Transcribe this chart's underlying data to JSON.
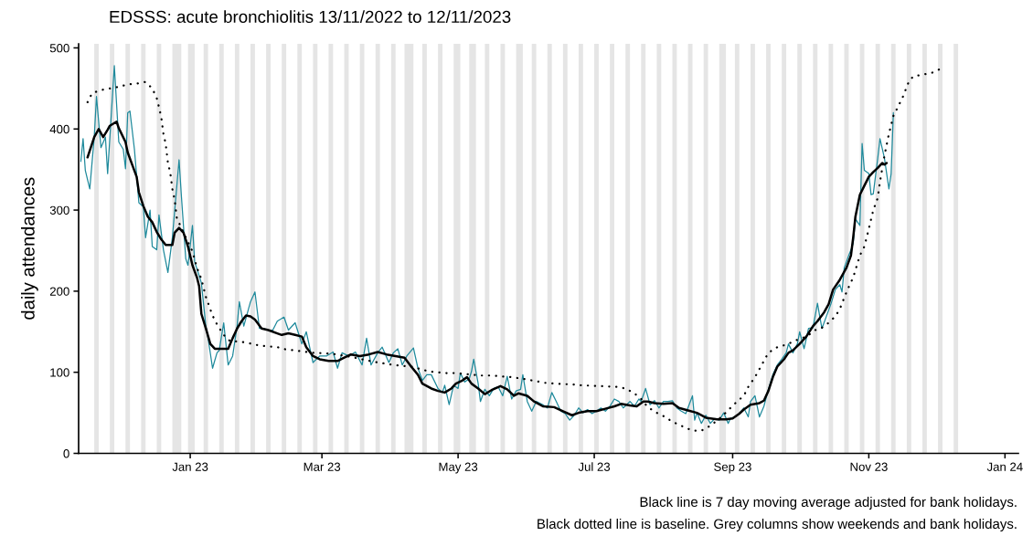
{
  "chart_data": {
    "type": "line",
    "title": "EDSSS: acute bronchiolitis 13/11/2022 to 12/11/2023",
    "ylabel": "daily attendances",
    "annotations": [
      "Black line is 7 day moving average adjusted for bank holidays.",
      "Black dotted line is baseline. Grey columns show weekends and bank holidays."
    ],
    "xlim": [
      "2022-11-12",
      "2024-01-07"
    ],
    "ylim": [
      0,
      505
    ],
    "xticks": [
      {
        "value": "2023-01-01",
        "label": "Jan 23"
      },
      {
        "value": "2023-03-01",
        "label": "Mar 23"
      },
      {
        "value": "2023-05-01",
        "label": "May 23"
      },
      {
        "value": "2023-07-01",
        "label": "Jul 23"
      },
      {
        "value": "2023-09-01",
        "label": "Sep 23"
      },
      {
        "value": "2023-11-01",
        "label": "Nov 23"
      },
      {
        "value": "2024-01-01",
        "label": "Jan 24"
      }
    ],
    "yticks": [
      0,
      100,
      200,
      300,
      400,
      500
    ],
    "series": [
      {
        "color": "#1f8a9c",
        "x": [
          "2022-11-13",
          "2022-11-14",
          "2022-11-15",
          "2022-11-17",
          "2022-11-19",
          "2022-11-20",
          "2022-11-22",
          "2022-11-24",
          "2022-11-25",
          "2022-11-28",
          "2022-11-30",
          "2022-12-02",
          "2022-12-03",
          "2022-12-04",
          "2022-12-05",
          "2022-12-07",
          "2022-12-09",
          "2022-12-11",
          "2022-12-12",
          "2022-12-14",
          "2022-12-15",
          "2022-12-17",
          "2022-12-18",
          "2022-12-20",
          "2022-12-22",
          "2022-12-24",
          "2022-12-27",
          "2022-12-28",
          "2022-12-30",
          "2022-12-31",
          "2023-01-02",
          "2023-01-03",
          "2023-01-05",
          "2023-01-06",
          "2023-01-08",
          "2023-01-09",
          "2023-01-11",
          "2023-01-13",
          "2023-01-14",
          "2023-01-16",
          "2023-01-18",
          "2023-01-20",
          "2023-01-22",
          "2023-01-23",
          "2023-01-25",
          "2023-01-28",
          "2023-01-30",
          "2023-02-01",
          "2023-02-03",
          "2023-02-05",
          "2023-02-07",
          "2023-02-09",
          "2023-02-12",
          "2023-02-14",
          "2023-02-17",
          "2023-02-20",
          "2023-02-22",
          "2023-02-25",
          "2023-02-28",
          "2023-03-03",
          "2023-03-06",
          "2023-03-08",
          "2023-03-10",
          "2023-03-13",
          "2023-03-16",
          "2023-03-19",
          "2023-03-21",
          "2023-03-23",
          "2023-03-26",
          "2023-03-28",
          "2023-03-31",
          "2023-04-02",
          "2023-04-04",
          "2023-04-06",
          "2023-04-08",
          "2023-04-11",
          "2023-04-13",
          "2023-04-15",
          "2023-04-17",
          "2023-04-19",
          "2023-04-22",
          "2023-04-24",
          "2023-04-25",
          "2023-04-27",
          "2023-04-29",
          "2023-05-01",
          "2023-05-02",
          "2023-05-04",
          "2023-05-06",
          "2023-05-07",
          "2023-05-08",
          "2023-05-10",
          "2023-05-11",
          "2023-05-13",
          "2023-05-15",
          "2023-05-17",
          "2023-05-19",
          "2023-05-21",
          "2023-05-23",
          "2023-05-25",
          "2023-05-27",
          "2023-05-29",
          "2023-05-30",
          "2023-06-01",
          "2023-06-03",
          "2023-06-05",
          "2023-06-08",
          "2023-06-10",
          "2023-06-12",
          "2023-06-14",
          "2023-06-16",
          "2023-06-18",
          "2023-06-20",
          "2023-06-22",
          "2023-06-24",
          "2023-06-26",
          "2023-06-28",
          "2023-06-30",
          "2023-07-02",
          "2023-07-04",
          "2023-07-06",
          "2023-07-08",
          "2023-07-10",
          "2023-07-12",
          "2023-07-14",
          "2023-07-17",
          "2023-07-19",
          "2023-07-21",
          "2023-07-22",
          "2023-07-24",
          "2023-07-26",
          "2023-07-28",
          "2023-07-30",
          "2023-08-01",
          "2023-08-03",
          "2023-08-05",
          "2023-08-07",
          "2023-08-09",
          "2023-08-11",
          "2023-08-14",
          "2023-08-15",
          "2023-08-16",
          "2023-08-18",
          "2023-08-20",
          "2023-08-22",
          "2023-08-24",
          "2023-08-26",
          "2023-08-28",
          "2023-08-30",
          "2023-08-31",
          "2023-09-02",
          "2023-09-04",
          "2023-09-06",
          "2023-09-08",
          "2023-09-09",
          "2023-09-11",
          "2023-09-13",
          "2023-09-15",
          "2023-09-17",
          "2023-09-19",
          "2023-09-21",
          "2023-09-23",
          "2023-09-25",
          "2023-09-26",
          "2023-09-28",
          "2023-09-30",
          "2023-10-01",
          "2023-10-03",
          "2023-10-05",
          "2023-10-07",
          "2023-10-09",
          "2023-10-10",
          "2023-10-11",
          "2023-10-13",
          "2023-10-15",
          "2023-10-17",
          "2023-10-19",
          "2023-10-20",
          "2023-10-21",
          "2023-10-23",
          "2023-10-24",
          "2023-10-25",
          "2023-10-26",
          "2023-10-28",
          "2023-10-29",
          "2023-10-30",
          "2023-11-01",
          "2023-11-02",
          "2023-11-03",
          "2023-11-05",
          "2023-11-06",
          "2023-11-08",
          "2023-11-09",
          "2023-11-10",
          "2023-11-11",
          "2023-11-12"
        ],
        "values": [
          360,
          388,
          349,
          326,
          390,
          440,
          377,
          390,
          345,
          478,
          384,
          375,
          351,
          420,
          422,
          375,
          309,
          304,
          266,
          300,
          255,
          251,
          294,
          251,
          223,
          266,
          362,
          319,
          240,
          232,
          281,
          236,
          219,
          210,
          157,
          142,
          105,
          124,
          127,
          161,
          109,
          120,
          157,
          187,
          157,
          187,
          199,
          154,
          154,
          152,
          152,
          163,
          168,
          152,
          161,
          135,
          150,
          112,
          120,
          120,
          125,
          105,
          124,
          120,
          125,
          109,
          142,
          109,
          124,
          131,
          112,
          124,
          129,
          109,
          120,
          130,
          105,
          90,
          97,
          97,
          80,
          75,
          84,
          60,
          84,
          80,
          99,
          88,
          92,
          101,
          116,
          86,
          64,
          79,
          71,
          80,
          82,
          71,
          95,
          67,
          77,
          79,
          97,
          64,
          52,
          64,
          60,
          56,
          75,
          64,
          52,
          49,
          41,
          47,
          56,
          50,
          54,
          49,
          52,
          56,
          52,
          58,
          67,
          64,
          56,
          64,
          58,
          67,
          64,
          80,
          60,
          65,
          56,
          64,
          64,
          65,
          56,
          52,
          49,
          71,
          41,
          50,
          37,
          47,
          37,
          43,
          41,
          50,
          37,
          43,
          45,
          49,
          56,
          45,
          64,
          71,
          45,
          58,
          79,
          97,
          109,
          116,
          124,
          135,
          124,
          135,
          150,
          129,
          154,
          155,
          185,
          169,
          154,
          169,
          184,
          202,
          208,
          199,
          229,
          244,
          251,
          259,
          289,
          281,
          382,
          349,
          345,
          319,
          320,
          364,
          388,
          364,
          345,
          326,
          345,
          420
        ]
      },
      {
        "color": "#000000",
        "x": [
          "2022-11-16",
          "2022-11-19",
          "2022-11-21",
          "2022-11-23",
          "2022-11-25",
          "2022-11-26",
          "2022-11-29",
          "2022-11-30",
          "2022-12-03",
          "2022-12-04",
          "2022-12-06",
          "2022-12-08",
          "2022-12-09",
          "2022-12-11",
          "2022-12-13",
          "2022-12-15",
          "2022-12-17",
          "2022-12-19",
          "2022-12-21",
          "2022-12-24",
          "2022-12-25",
          "2022-12-27",
          "2022-12-29",
          "2022-12-31",
          "2023-01-02",
          "2023-01-04",
          "2023-01-05",
          "2023-01-06",
          "2023-01-08",
          "2023-01-10",
          "2023-01-12",
          "2023-01-14",
          "2023-01-18",
          "2023-01-20",
          "2023-01-22",
          "2023-01-24",
          "2023-01-26",
          "2023-01-28",
          "2023-01-30",
          "2023-02-02",
          "2023-02-05",
          "2023-02-09",
          "2023-02-11",
          "2023-02-14",
          "2023-02-17",
          "2023-02-20",
          "2023-02-22",
          "2023-02-25",
          "2023-02-28",
          "2023-03-04",
          "2023-03-08",
          "2023-03-11",
          "2023-03-14",
          "2023-03-18",
          "2023-03-22",
          "2023-03-26",
          "2023-03-30",
          "2023-04-03",
          "2023-04-07",
          "2023-04-10",
          "2023-04-13",
          "2023-04-15",
          "2023-04-19",
          "2023-04-22",
          "2023-04-25",
          "2023-04-28",
          "2023-04-30",
          "2023-05-03",
          "2023-05-05",
          "2023-05-07",
          "2023-05-10",
          "2023-05-13",
          "2023-05-16",
          "2023-05-20",
          "2023-05-23",
          "2023-05-26",
          "2023-05-28",
          "2023-06-01",
          "2023-06-04",
          "2023-06-08",
          "2023-06-13",
          "2023-06-17",
          "2023-06-21",
          "2023-06-24",
          "2023-06-28",
          "2023-07-02",
          "2023-07-06",
          "2023-07-10",
          "2023-07-13",
          "2023-07-17",
          "2023-07-20",
          "2023-07-23",
          "2023-07-25",
          "2023-07-28",
          "2023-08-01",
          "2023-08-05",
          "2023-08-08",
          "2023-08-12",
          "2023-08-16",
          "2023-08-20",
          "2023-08-25",
          "2023-08-29",
          "2023-09-01",
          "2023-09-04",
          "2023-09-06",
          "2023-09-09",
          "2023-09-13",
          "2023-09-15",
          "2023-09-17",
          "2023-09-19",
          "2023-09-21",
          "2023-09-24",
          "2023-09-26",
          "2023-09-28",
          "2023-10-01",
          "2023-10-04",
          "2023-10-07",
          "2023-10-09",
          "2023-10-12",
          "2023-10-14",
          "2023-10-16",
          "2023-10-19",
          "2023-10-22",
          "2023-10-24",
          "2023-10-25",
          "2023-10-26",
          "2023-10-28",
          "2023-10-30",
          "2023-11-01",
          "2023-11-03",
          "2023-11-05",
          "2023-11-07",
          "2023-11-08",
          "2023-11-09"
        ],
        "values": [
          365,
          390,
          400,
          390,
          399,
          404,
          409,
          401,
          384,
          371,
          356,
          341,
          322,
          305,
          292,
          285,
          273,
          264,
          257,
          257,
          272,
          278,
          272,
          255,
          232,
          217,
          206,
          172,
          154,
          135,
          129,
          129,
          129,
          142,
          154,
          163,
          170,
          169,
          165,
          154,
          152,
          148,
          146,
          148,
          146,
          144,
          131,
          120,
          116,
          114,
          114,
          118,
          122,
          120,
          122,
          125,
          122,
          120,
          118,
          107,
          97,
          86,
          80,
          77,
          75,
          80,
          86,
          90,
          94,
          86,
          80,
          73,
          78,
          83,
          79,
          71,
          74,
          71,
          64,
          58,
          57,
          52,
          47,
          50,
          52,
          52,
          55,
          58,
          61,
          59,
          58,
          64,
          64,
          62,
          61,
          62,
          56,
          53,
          50,
          44,
          42,
          42,
          43,
          49,
          54,
          60,
          62,
          65,
          77,
          94,
          107,
          116,
          124,
          127,
          135,
          144,
          157,
          163,
          174,
          184,
          202,
          214,
          229,
          244,
          266,
          292,
          319,
          330,
          341,
          347,
          352,
          358,
          356,
          358
        ]
      },
      {
        "color": "#000000",
        "line_style": "dotted",
        "x": [
          "2022-11-16",
          "2022-11-18",
          "2022-11-22",
          "2022-11-26",
          "2022-11-30",
          "2022-12-04",
          "2022-12-08",
          "2022-12-12",
          "2022-12-15",
          "2022-12-17",
          "2022-12-18",
          "2022-12-19",
          "2022-12-20",
          "2022-12-21",
          "2022-12-22",
          "2022-12-23",
          "2022-12-24",
          "2022-12-25",
          "2022-12-26",
          "2023-01-02",
          "2023-01-04",
          "2023-01-06",
          "2023-01-08",
          "2023-01-11",
          "2023-01-13",
          "2023-01-16",
          "2023-01-19",
          "2023-01-23",
          "2023-01-27",
          "2023-02-01",
          "2023-02-05",
          "2023-02-09",
          "2023-02-13",
          "2023-02-17",
          "2023-02-25",
          "2023-03-05",
          "2023-03-14",
          "2023-03-24",
          "2023-04-02",
          "2023-04-10",
          "2023-04-18",
          "2023-04-26",
          "2023-04-30",
          "2023-05-07",
          "2023-05-11",
          "2023-05-16",
          "2023-05-20",
          "2023-05-25",
          "2023-06-01",
          "2023-06-05",
          "2023-06-09",
          "2023-06-13",
          "2023-06-21",
          "2023-06-25",
          "2023-07-03",
          "2023-07-11",
          "2023-07-15",
          "2023-07-19",
          "2023-07-22",
          "2023-07-25",
          "2023-07-29",
          "2023-08-01",
          "2023-08-05",
          "2023-08-09",
          "2023-08-14",
          "2023-08-18",
          "2023-08-22",
          "2023-08-27",
          "2023-08-31",
          "2023-09-03",
          "2023-09-06",
          "2023-09-08",
          "2023-09-11",
          "2023-09-15",
          "2023-09-17",
          "2023-09-21",
          "2023-09-25",
          "2023-09-29",
          "2023-10-04",
          "2023-10-08",
          "2023-10-11",
          "2023-10-14",
          "2023-10-17",
          "2023-10-19",
          "2023-10-22",
          "2023-10-25",
          "2023-10-28",
          "2023-10-30",
          "2023-11-01",
          "2023-11-03",
          "2023-11-05",
          "2023-11-06",
          "2023-11-08",
          "2023-11-10",
          "2023-11-12",
          "2023-11-14",
          "2023-11-16",
          "2023-11-19",
          "2023-11-21",
          "2023-11-25",
          "2023-11-29",
          "2023-12-03"
        ],
        "values": [
          433,
          444,
          448,
          450,
          452,
          455,
          456,
          458,
          450,
          438,
          427,
          415,
          394,
          382,
          358,
          347,
          326,
          313,
          290,
          249,
          229,
          215,
          193,
          170,
          159,
          146,
          138,
          138,
          136,
          133,
          132,
          131,
          128,
          127,
          124,
          123,
          119,
          113,
          109,
          107,
          101,
          99,
          99,
          97,
          96,
          96,
          95,
          94,
          91,
          89,
          87,
          86,
          85,
          84,
          83,
          82,
          80,
          74,
          67,
          57,
          50,
          46,
          39,
          34,
          28,
          28,
          34,
          45,
          56,
          64,
          71,
          82,
          94,
          114,
          124,
          131,
          134,
          139,
          144,
          152,
          155,
          161,
          169,
          178,
          199,
          217,
          244,
          255,
          277,
          300,
          315,
          335,
          367,
          394,
          416,
          427,
          438,
          459,
          465,
          467,
          469,
          474
        ]
      }
    ],
    "bands": [
      {
        "axis": "x",
        "from": "2022-11-19",
        "to": "2022-11-21",
        "color": "#e5e5e5"
      },
      {
        "axis": "x",
        "from": "2022-11-26",
        "to": "2022-11-28",
        "color": "#e5e5e5"
      },
      {
        "axis": "x",
        "from": "2022-12-03",
        "to": "2022-12-05",
        "color": "#e5e5e5"
      },
      {
        "axis": "x",
        "from": "2022-12-10",
        "to": "2022-12-12",
        "color": "#e5e5e5"
      },
      {
        "axis": "x",
        "from": "2022-12-17",
        "to": "2022-12-19",
        "color": "#e5e5e5"
      },
      {
        "axis": "x",
        "from": "2022-12-24",
        "to": "2022-12-28",
        "color": "#e5e5e5"
      },
      {
        "axis": "x",
        "from": "2022-12-31",
        "to": "2023-01-03",
        "color": "#e5e5e5"
      },
      {
        "axis": "x",
        "from": "2023-01-07",
        "to": "2023-01-09",
        "color": "#e5e5e5"
      },
      {
        "axis": "x",
        "from": "2023-01-14",
        "to": "2023-01-16",
        "color": "#e5e5e5"
      },
      {
        "axis": "x",
        "from": "2023-01-21",
        "to": "2023-01-23",
        "color": "#e5e5e5"
      },
      {
        "axis": "x",
        "from": "2023-01-28",
        "to": "2023-01-30",
        "color": "#e5e5e5"
      },
      {
        "axis": "x",
        "from": "2023-02-04",
        "to": "2023-02-06",
        "color": "#e5e5e5"
      },
      {
        "axis": "x",
        "from": "2023-02-11",
        "to": "2023-02-13",
        "color": "#e5e5e5"
      },
      {
        "axis": "x",
        "from": "2023-02-18",
        "to": "2023-02-20",
        "color": "#e5e5e5"
      },
      {
        "axis": "x",
        "from": "2023-02-25",
        "to": "2023-02-27",
        "color": "#e5e5e5"
      },
      {
        "axis": "x",
        "from": "2023-03-04",
        "to": "2023-03-06",
        "color": "#e5e5e5"
      },
      {
        "axis": "x",
        "from": "2023-03-11",
        "to": "2023-03-13",
        "color": "#e5e5e5"
      },
      {
        "axis": "x",
        "from": "2023-03-18",
        "to": "2023-03-20",
        "color": "#e5e5e5"
      },
      {
        "axis": "x",
        "from": "2023-03-25",
        "to": "2023-03-27",
        "color": "#e5e5e5"
      },
      {
        "axis": "x",
        "from": "2023-04-01",
        "to": "2023-04-03",
        "color": "#e5e5e5"
      },
      {
        "axis": "x",
        "from": "2023-04-07",
        "to": "2023-04-11",
        "color": "#e5e5e5"
      },
      {
        "axis": "x",
        "from": "2023-04-15",
        "to": "2023-04-17",
        "color": "#e5e5e5"
      },
      {
        "axis": "x",
        "from": "2023-04-22",
        "to": "2023-04-24",
        "color": "#e5e5e5"
      },
      {
        "axis": "x",
        "from": "2023-04-29",
        "to": "2023-05-02",
        "color": "#e5e5e5"
      },
      {
        "axis": "x",
        "from": "2023-05-06",
        "to": "2023-05-09",
        "color": "#e5e5e5"
      },
      {
        "axis": "x",
        "from": "2023-05-13",
        "to": "2023-05-15",
        "color": "#e5e5e5"
      },
      {
        "axis": "x",
        "from": "2023-05-20",
        "to": "2023-05-22",
        "color": "#e5e5e5"
      },
      {
        "axis": "x",
        "from": "2023-05-27",
        "to": "2023-05-30",
        "color": "#e5e5e5"
      },
      {
        "axis": "x",
        "from": "2023-06-03",
        "to": "2023-06-05",
        "color": "#e5e5e5"
      },
      {
        "axis": "x",
        "from": "2023-06-10",
        "to": "2023-06-12",
        "color": "#e5e5e5"
      },
      {
        "axis": "x",
        "from": "2023-06-17",
        "to": "2023-06-19",
        "color": "#e5e5e5"
      },
      {
        "axis": "x",
        "from": "2023-06-24",
        "to": "2023-06-26",
        "color": "#e5e5e5"
      },
      {
        "axis": "x",
        "from": "2023-07-01",
        "to": "2023-07-03",
        "color": "#e5e5e5"
      },
      {
        "axis": "x",
        "from": "2023-07-08",
        "to": "2023-07-10",
        "color": "#e5e5e5"
      },
      {
        "axis": "x",
        "from": "2023-07-15",
        "to": "2023-07-17",
        "color": "#e5e5e5"
      },
      {
        "axis": "x",
        "from": "2023-07-22",
        "to": "2023-07-24",
        "color": "#e5e5e5"
      },
      {
        "axis": "x",
        "from": "2023-07-29",
        "to": "2023-07-31",
        "color": "#e5e5e5"
      },
      {
        "axis": "x",
        "from": "2023-08-05",
        "to": "2023-08-07",
        "color": "#e5e5e5"
      },
      {
        "axis": "x",
        "from": "2023-08-12",
        "to": "2023-08-14",
        "color": "#e5e5e5"
      },
      {
        "axis": "x",
        "from": "2023-08-19",
        "to": "2023-08-21",
        "color": "#e5e5e5"
      },
      {
        "axis": "x",
        "from": "2023-08-26",
        "to": "2023-08-29",
        "color": "#e5e5e5"
      },
      {
        "axis": "x",
        "from": "2023-09-02",
        "to": "2023-09-04",
        "color": "#e5e5e5"
      },
      {
        "axis": "x",
        "from": "2023-09-09",
        "to": "2023-09-11",
        "color": "#e5e5e5"
      },
      {
        "axis": "x",
        "from": "2023-09-16",
        "to": "2023-09-18",
        "color": "#e5e5e5"
      },
      {
        "axis": "x",
        "from": "2023-09-23",
        "to": "2023-09-25",
        "color": "#e5e5e5"
      },
      {
        "axis": "x",
        "from": "2023-09-30",
        "to": "2023-10-02",
        "color": "#e5e5e5"
      },
      {
        "axis": "x",
        "from": "2023-10-07",
        "to": "2023-10-09",
        "color": "#e5e5e5"
      },
      {
        "axis": "x",
        "from": "2023-10-14",
        "to": "2023-10-16",
        "color": "#e5e5e5"
      },
      {
        "axis": "x",
        "from": "2023-10-21",
        "to": "2023-10-23",
        "color": "#e5e5e5"
      },
      {
        "axis": "x",
        "from": "2023-10-28",
        "to": "2023-10-30",
        "color": "#e5e5e5"
      },
      {
        "axis": "x",
        "from": "2023-11-04",
        "to": "2023-11-06",
        "color": "#e5e5e5"
      },
      {
        "axis": "x",
        "from": "2023-11-11",
        "to": "2023-11-13",
        "color": "#e5e5e5"
      },
      {
        "axis": "x",
        "from": "2023-11-18",
        "to": "2023-11-20",
        "color": "#e5e5e5"
      },
      {
        "axis": "x",
        "from": "2023-11-25",
        "to": "2023-11-27",
        "color": "#e5e5e5"
      },
      {
        "axis": "x",
        "from": "2023-12-02",
        "to": "2023-12-04",
        "color": "#e5e5e5"
      },
      {
        "axis": "x",
        "from": "2023-12-09",
        "to": "2023-12-11",
        "color": "#e5e5e5"
      }
    ]
  }
}
